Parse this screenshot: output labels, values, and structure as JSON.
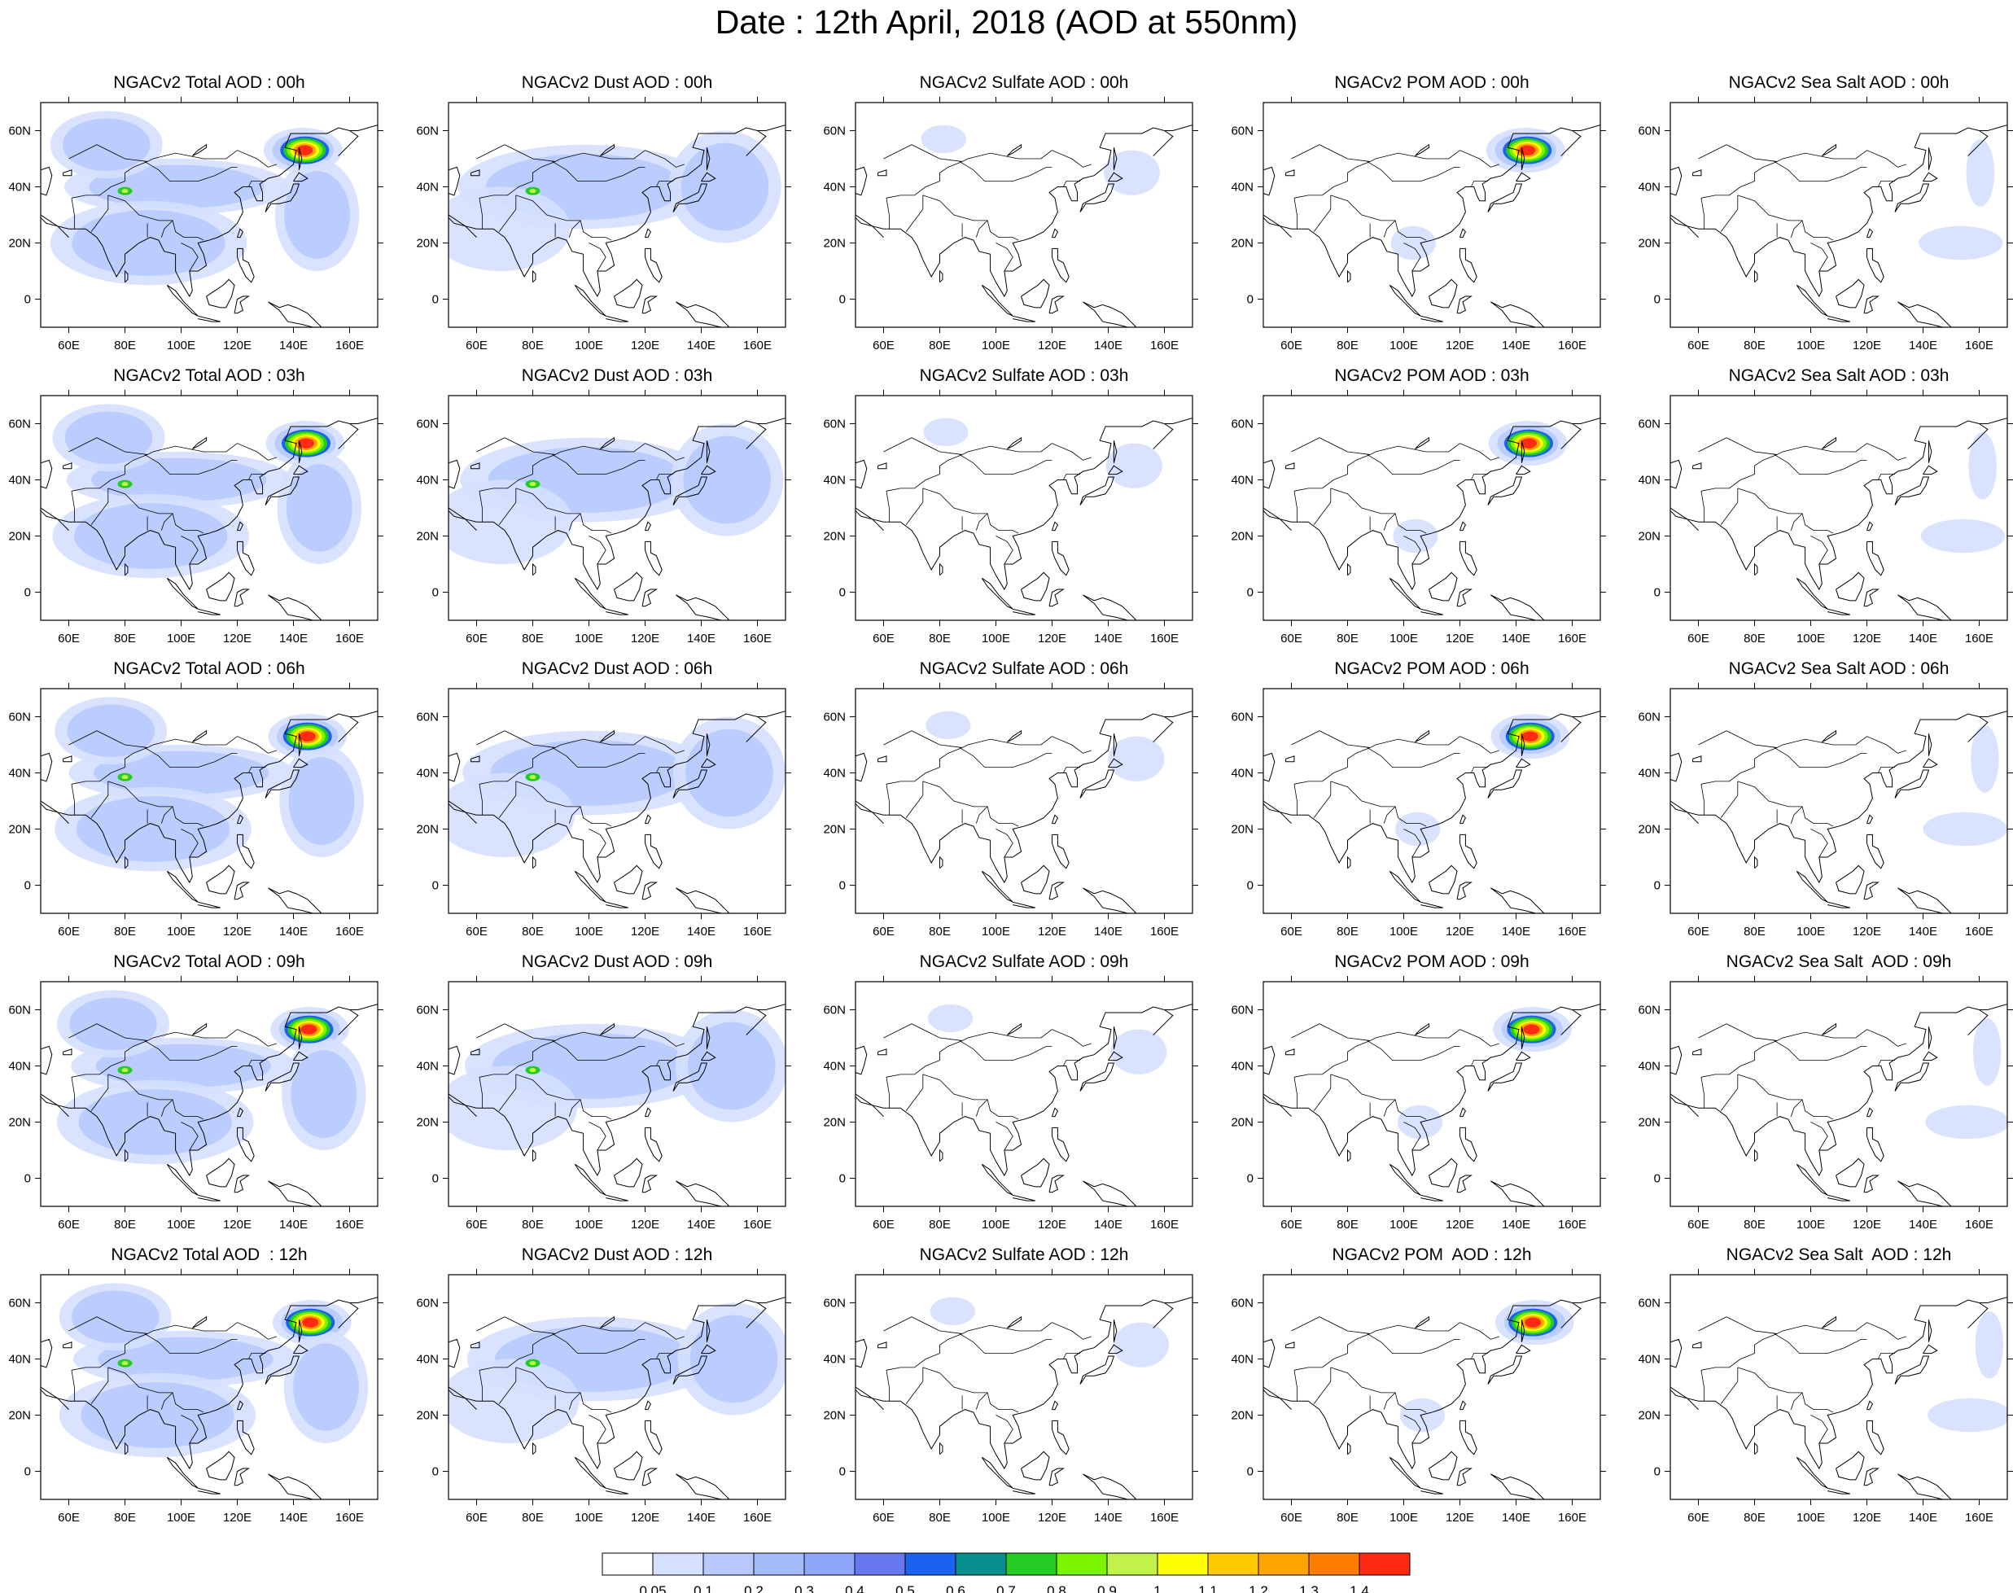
{
  "title": "Date : 12th April, 2018 (AOD at 550nm)",
  "axes": {
    "x_ticks": [
      "60E",
      "80E",
      "100E",
      "120E",
      "140E",
      "160E"
    ],
    "y_ticks": [
      "60N",
      "40N",
      "20N",
      "0"
    ],
    "lon_values": [
      60,
      80,
      100,
      120,
      140,
      160
    ],
    "lat_values": [
      60,
      40,
      20,
      0
    ],
    "lon_range": [
      50,
      170
    ],
    "lat_range": [
      -10,
      70
    ]
  },
  "panels": [
    [
      "NGACv2 Total AOD : 00h",
      "NGACv2 Dust AOD : 00h",
      "NGACv2 Sulfate AOD : 00h",
      "NGACv2 POM AOD : 00h",
      "NGACv2 Sea Salt AOD : 00h"
    ],
    [
      "NGACv2 Total AOD : 03h",
      "NGACv2 Dust AOD : 03h",
      "NGACv2 Sulfate AOD : 03h",
      "NGACv2 POM AOD : 03h",
      "NGACv2 Sea Salt AOD : 03h"
    ],
    [
      "NGACv2 Total AOD : 06h",
      "NGACv2 Dust AOD : 06h",
      "NGACv2 Sulfate AOD : 06h",
      "NGACv2 POM AOD : 06h",
      "NGACv2 Sea Salt AOD : 06h"
    ],
    [
      "NGACv2 Total AOD : 09h",
      "NGACv2 Dust AOD : 09h",
      "NGACv2 Sulfate AOD : 09h",
      "NGACv2 POM AOD : 09h",
      "NGACv2 Sea Salt  AOD : 09h"
    ],
    [
      "NGACv2 Total AOD  : 12h",
      "NGACv2 Dust AOD : 12h",
      "NGACv2 Sulfate AOD : 12h",
      "NGACv2 POM  AOD : 12h",
      "NGACv2 Sea Salt  AOD : 12h"
    ]
  ],
  "colorbar": {
    "labels": [
      "0.05",
      "0.1",
      "0.2",
      "0.3",
      "0.4",
      "0.5",
      "0.6",
      "0.7",
      "0.8",
      "0.9",
      "1",
      "1.1",
      "1.2",
      "1.3",
      "1.4"
    ],
    "colors": [
      "#ffffff",
      "#d5e0ff",
      "#b7c9ff",
      "#a3bbfb",
      "#8ea7fa",
      "#6777f0",
      "#1a62ef",
      "#078f8f",
      "#22cc22",
      "#7cf400",
      "#c0f24a",
      "#ffff00",
      "#ffc800",
      "#ffa500",
      "#ff7d00",
      "#ff2a12"
    ]
  },
  "plume_colors": [
    "#ff2a12",
    "#ffa500",
    "#ffff00",
    "#7cf400",
    "#22cc22",
    "#1a62ef"
  ],
  "fields": {
    "total": [
      {
        "lon": 145,
        "lat": 53,
        "rx": 14,
        "ry": 8,
        "level": 0.45
      },
      {
        "lon": 100,
        "lat": 40,
        "rx": 40,
        "ry": 10,
        "level": 0.25
      },
      {
        "lon": 90,
        "lat": 20,
        "rx": 35,
        "ry": 15,
        "level": 0.2
      },
      {
        "lon": 150,
        "lat": 30,
        "rx": 15,
        "ry": 20,
        "level": 0.25
      },
      {
        "lon": 75,
        "lat": 55,
        "rx": 20,
        "ry": 12,
        "level": 0.2
      }
    ],
    "dust": [
      {
        "lon": 100,
        "lat": 40,
        "rx": 45,
        "ry": 15,
        "level": 0.25
      },
      {
        "lon": 150,
        "lat": 40,
        "rx": 20,
        "ry": 20,
        "level": 0.2
      },
      {
        "lon": 70,
        "lat": 25,
        "rx": 25,
        "ry": 15,
        "level": 0.15
      }
    ],
    "sulfate": [
      {
        "lon": 83,
        "lat": 57,
        "rx": 8,
        "ry": 5,
        "level": 0.15
      },
      {
        "lon": 150,
        "lat": 45,
        "rx": 10,
        "ry": 8,
        "level": 0.15
      }
    ],
    "pom": [
      {
        "lon": 145,
        "lat": 53,
        "rx": 14,
        "ry": 8,
        "level": 0.4
      },
      {
        "lon": 105,
        "lat": 20,
        "rx": 8,
        "ry": 6,
        "level": 0.15
      }
    ],
    "seasalt": [
      {
        "lon": 155,
        "lat": 20,
        "rx": 15,
        "ry": 6,
        "level": 0.12
      },
      {
        "lon": 162,
        "lat": 45,
        "rx": 5,
        "ry": 12,
        "level": 0.1
      }
    ]
  }
}
